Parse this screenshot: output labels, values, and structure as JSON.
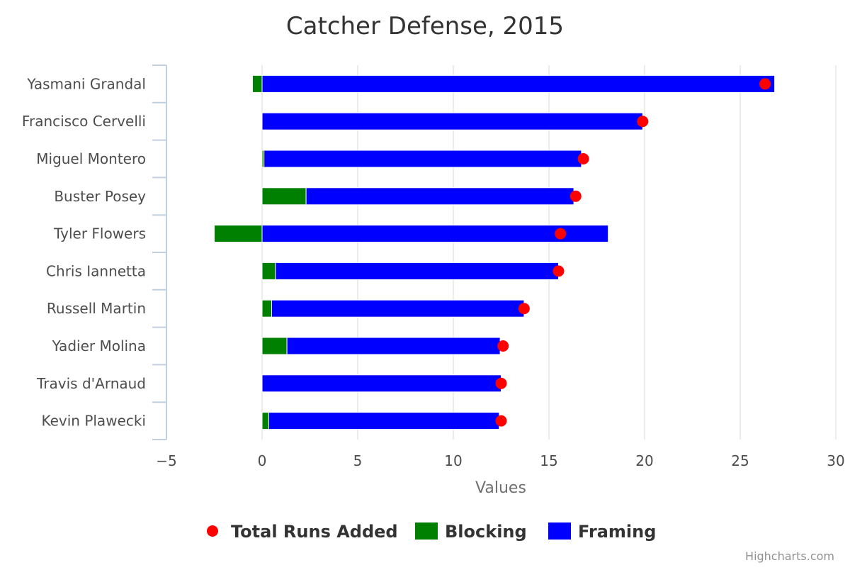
{
  "chart_data": {
    "type": "bar",
    "title": "Catcher Defense, 2015",
    "xlabel": "",
    "ylabel": "Values",
    "ylim": [
      -5,
      30
    ],
    "ticks": [
      -5,
      0,
      5,
      10,
      15,
      20,
      25,
      30
    ],
    "categories": [
      "Yasmani Grandal",
      "Francisco Cervelli",
      "Miguel Montero",
      "Buster Posey",
      "Tyler Flowers",
      "Chris Iannetta",
      "Russell Martin",
      "Yadier Molina",
      "Travis d'Arnaud",
      "Kevin Plawecki"
    ],
    "series": [
      {
        "name": "Total Runs Added",
        "kind": "scatter",
        "color": "#ff0000",
        "values": [
          26.3,
          19.9,
          16.8,
          16.4,
          15.6,
          15.5,
          13.7,
          12.6,
          12.5,
          12.5
        ]
      },
      {
        "name": "Blocking",
        "kind": "bar",
        "color": "#008000",
        "values": [
          -0.5,
          0.0,
          0.1,
          2.3,
          -2.5,
          0.7,
          0.5,
          1.3,
          0.0,
          0.35
        ]
      },
      {
        "name": "Framing",
        "kind": "bar",
        "color": "#0000ff",
        "values": [
          26.8,
          19.9,
          16.6,
          14.0,
          18.1,
          14.8,
          13.2,
          11.15,
          12.5,
          12.05
        ]
      }
    ],
    "grid": true,
    "legend": "bottom-center"
  },
  "credits": "Highcharts.com"
}
